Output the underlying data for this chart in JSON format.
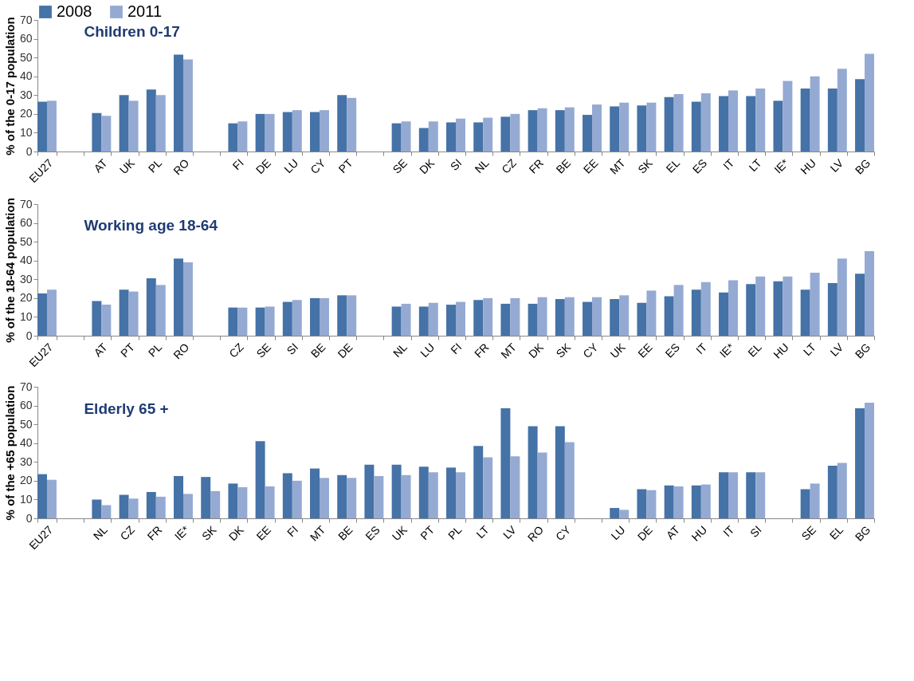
{
  "chart_data": [
    {
      "type": "bar",
      "title": "Children 0-17",
      "ylabel": "% of the 0-17 population",
      "ylim": [
        0,
        70
      ],
      "yticks": [
        0,
        10,
        20,
        30,
        40,
        50,
        60,
        70
      ],
      "grid": false,
      "legend": "top",
      "categories": [
        "EU27",
        null,
        "AT",
        "UK",
        "PL",
        "RO",
        null,
        "FI",
        "DE",
        "LU",
        "CY",
        "PT",
        null,
        "SE",
        "DK",
        "SI",
        "NL",
        "CZ",
        "FR",
        "BE",
        "EE",
        "MT",
        "SK",
        "EL",
        "ES",
        "IT",
        "LT",
        "IE*",
        "HU",
        "LV",
        "BG"
      ],
      "series": [
        {
          "name": "2008",
          "color": "#4572a7",
          "values": [
            26.5,
            null,
            20.5,
            30,
            33,
            51.5,
            null,
            15,
            20,
            21,
            21,
            30,
            null,
            15,
            12.5,
            15.5,
            15.5,
            18.5,
            22,
            22,
            19.5,
            24,
            24.5,
            29,
            26.5,
            29.5,
            29.5,
            27,
            33.5,
            33.5,
            38.5
          ]
        },
        {
          "name": "2011",
          "color": "#95aad2",
          "values": [
            27,
            null,
            19,
            27,
            30,
            49,
            null,
            16,
            20,
            22,
            22,
            28.5,
            null,
            16,
            16,
            17.5,
            18,
            20,
            23,
            23.5,
            25,
            26,
            26,
            30.5,
            31,
            32.5,
            33.5,
            37.5,
            40,
            44,
            52
          ]
        }
      ]
    },
    {
      "type": "bar",
      "title": "Working age 18-64",
      "ylabel": "% of the 18-64 population",
      "ylim": [
        0,
        70
      ],
      "yticks": [
        0,
        10,
        20,
        30,
        40,
        50,
        60,
        70
      ],
      "grid": false,
      "categories": [
        "EU27",
        null,
        "AT",
        "PT",
        "PL",
        "RO",
        null,
        "CZ",
        "SE",
        "SI",
        "BE",
        "DE",
        null,
        "NL",
        "LU",
        "FI",
        "FR",
        "MT",
        "DK",
        "SK",
        "CY",
        "UK",
        "EE",
        "ES",
        "IT",
        "IE*",
        "EL",
        "HU",
        "LT",
        "LV",
        "BG"
      ],
      "series": [
        {
          "name": "2008",
          "color": "#4572a7",
          "values": [
            22.5,
            null,
            18.5,
            24.5,
            30.5,
            41,
            null,
            15,
            15,
            18,
            20,
            21.5,
            null,
            15.5,
            15.5,
            16.5,
            19,
            17,
            17,
            19.5,
            18,
            19.5,
            17.5,
            21,
            24.5,
            23,
            27.5,
            29,
            24.5,
            28,
            33
          ]
        },
        {
          "name": "2011",
          "color": "#95aad2",
          "values": [
            24.5,
            null,
            16.5,
            23.5,
            27,
            39,
            null,
            15,
            15.5,
            19,
            20,
            21.5,
            null,
            17,
            17.5,
            18,
            20,
            20,
            20.5,
            20.5,
            20.5,
            21.5,
            24,
            27,
            28.5,
            29.5,
            31.5,
            31.5,
            33.5,
            41,
            45
          ]
        }
      ]
    },
    {
      "type": "bar",
      "title": "Elderly 65 +",
      "ylabel": "% of the +65 population",
      "ylim": [
        0,
        70
      ],
      "yticks": [
        0,
        10,
        20,
        30,
        40,
        50,
        60,
        70
      ],
      "grid": false,
      "categories": [
        "EU27",
        null,
        "NL",
        "CZ",
        "FR",
        "IE*",
        "SK",
        "DK",
        "EE",
        "FI",
        "MT",
        "BE",
        "ES",
        "UK",
        "PT",
        "PL",
        "LT",
        "LV",
        "RO",
        "CY",
        null,
        "LU",
        "DE",
        "AT",
        "HU",
        "IT",
        "SI",
        null,
        "SE",
        "EL",
        "BG"
      ],
      "series": [
        {
          "name": "2008",
          "color": "#4572a7",
          "values": [
            23.5,
            null,
            10,
            12.5,
            14,
            22.5,
            22,
            18.5,
            41,
            24,
            26.5,
            23,
            28.5,
            28.5,
            27.5,
            27,
            38.5,
            58.5,
            49,
            49,
            null,
            5.5,
            15.5,
            17.5,
            17.5,
            24.5,
            24.5,
            null,
            15.5,
            28,
            58.5
          ]
        },
        {
          "name": "2011",
          "color": "#95aad2",
          "values": [
            20.5,
            null,
            7,
            10.5,
            11.5,
            13,
            14.5,
            16.5,
            17,
            20,
            21.5,
            21.5,
            22.5,
            23,
            24.5,
            24.5,
            32.5,
            33,
            35,
            40.5,
            null,
            4.5,
            15,
            17,
            18,
            24.5,
            24.5,
            null,
            18.5,
            29.5,
            61.5
          ]
        }
      ]
    }
  ]
}
